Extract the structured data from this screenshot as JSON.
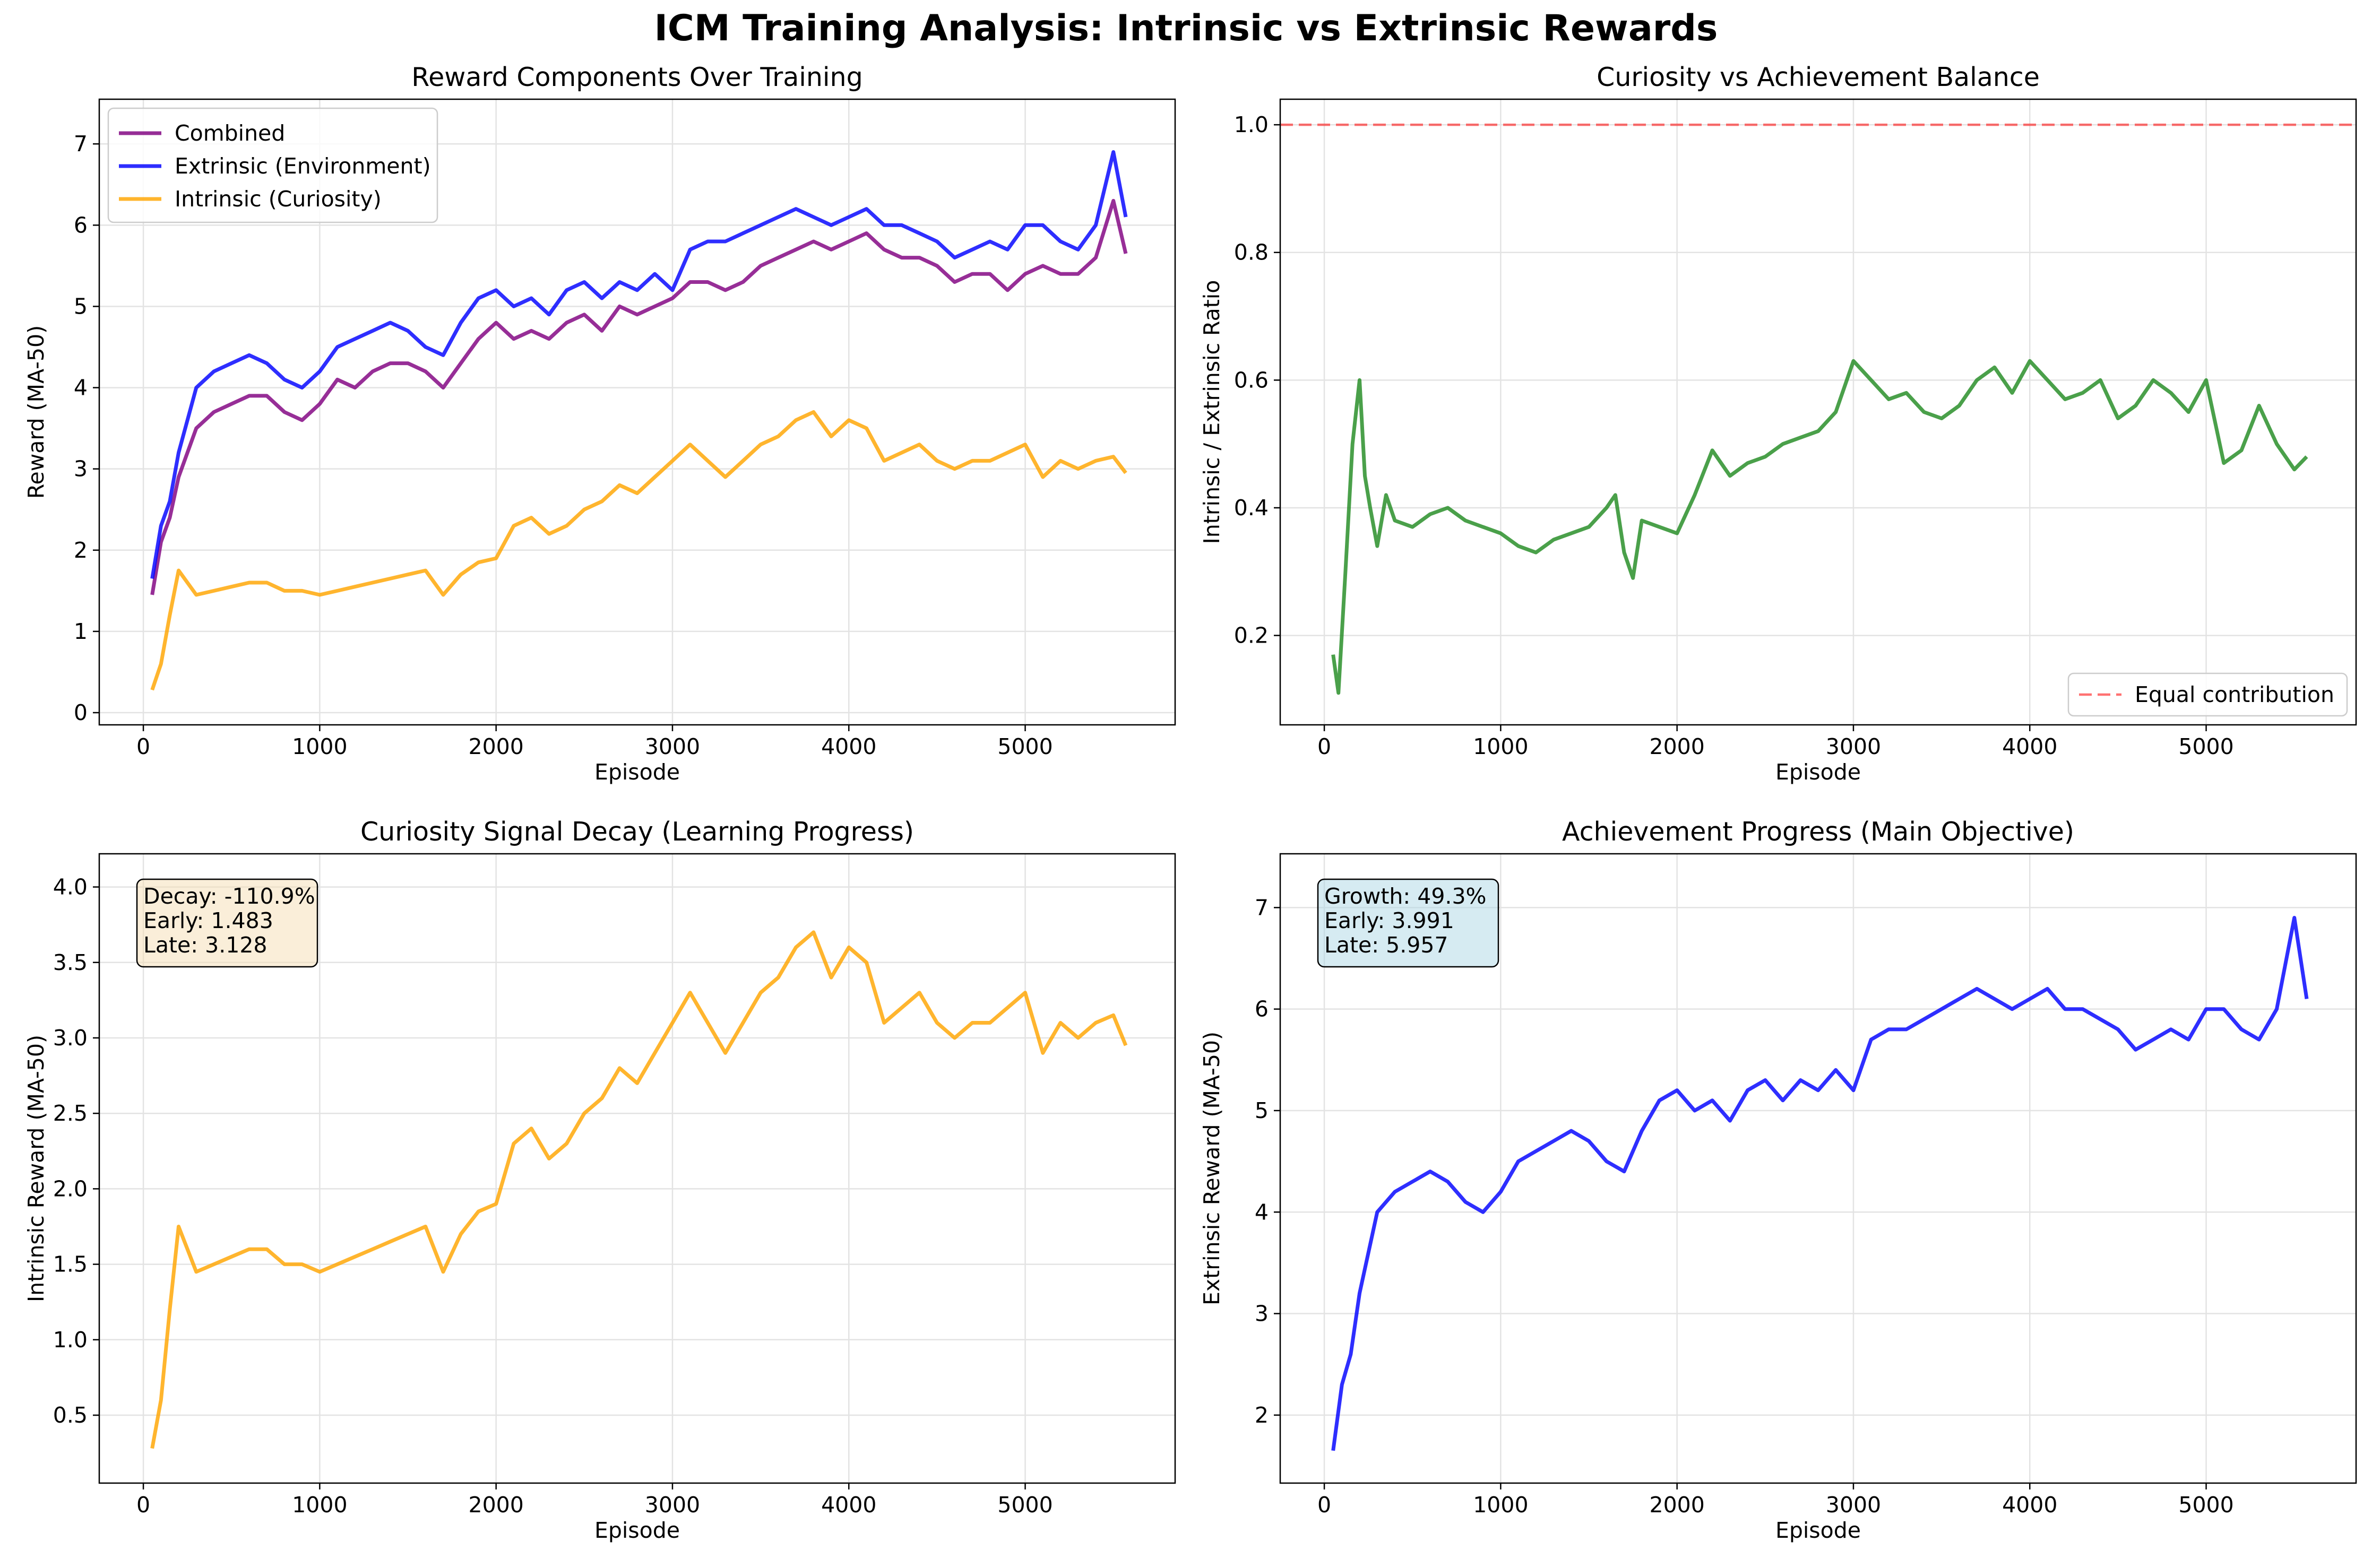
{
  "suptitle": "ICM Training Analysis: Intrinsic vs Extrinsic Rewards",
  "chart_data": [
    {
      "type": "line",
      "title": "Reward Components Over Training",
      "xlabel": "Episode",
      "ylabel": "Reward (MA-50)",
      "xlim": [
        -250,
        5850
      ],
      "ylim": [
        -0.15,
        7.55
      ],
      "xticks": [
        0,
        1000,
        2000,
        3000,
        4000,
        5000
      ],
      "yticks": [
        0,
        1,
        2,
        3,
        4,
        5,
        6,
        7
      ],
      "grid": true,
      "legend_position": "top-left",
      "series": [
        {
          "name": "Combined",
          "color": "#800080",
          "x": [
            50,
            100,
            150,
            200,
            300,
            400,
            500,
            600,
            700,
            800,
            900,
            1000,
            1100,
            1200,
            1300,
            1400,
            1500,
            1600,
            1700,
            1800,
            1900,
            2000,
            2100,
            2200,
            2300,
            2400,
            2500,
            2600,
            2700,
            2800,
            2900,
            3000,
            3100,
            3200,
            3300,
            3400,
            3500,
            3600,
            3700,
            3800,
            3900,
            4000,
            4100,
            4200,
            4300,
            4400,
            4500,
            4600,
            4700,
            4800,
            4900,
            5000,
            5100,
            5200,
            5300,
            5400,
            5500,
            5570
          ],
          "y": [
            1.45,
            2.1,
            2.4,
            2.9,
            3.5,
            3.7,
            3.8,
            3.9,
            3.9,
            3.7,
            3.6,
            3.8,
            4.1,
            4.0,
            4.2,
            4.3,
            4.3,
            4.2,
            4.0,
            4.3,
            4.6,
            4.8,
            4.6,
            4.7,
            4.6,
            4.8,
            4.9,
            4.7,
            5.0,
            4.9,
            5.0,
            5.1,
            5.3,
            5.3,
            5.2,
            5.3,
            5.5,
            5.6,
            5.7,
            5.8,
            5.7,
            5.8,
            5.9,
            5.7,
            5.6,
            5.6,
            5.5,
            5.3,
            5.4,
            5.4,
            5.2,
            5.4,
            5.5,
            5.4,
            5.4,
            5.6,
            6.3,
            5.65
          ]
        },
        {
          "name": "Extrinsic (Environment)",
          "color": "#0000ff",
          "x": [
            50,
            100,
            150,
            200,
            300,
            400,
            500,
            600,
            700,
            800,
            900,
            1000,
            1100,
            1200,
            1300,
            1400,
            1500,
            1600,
            1700,
            1800,
            1900,
            2000,
            2100,
            2200,
            2300,
            2400,
            2500,
            2600,
            2700,
            2800,
            2900,
            3000,
            3100,
            3200,
            3300,
            3400,
            3500,
            3600,
            3700,
            3800,
            3900,
            4000,
            4100,
            4200,
            4300,
            4400,
            4500,
            4600,
            4700,
            4800,
            4900,
            5000,
            5100,
            5200,
            5300,
            5400,
            5500,
            5570
          ],
          "y": [
            1.65,
            2.3,
            2.6,
            3.2,
            4.0,
            4.2,
            4.3,
            4.4,
            4.3,
            4.1,
            4.0,
            4.2,
            4.5,
            4.6,
            4.7,
            4.8,
            4.7,
            4.5,
            4.4,
            4.8,
            5.1,
            5.2,
            5.0,
            5.1,
            4.9,
            5.2,
            5.3,
            5.1,
            5.3,
            5.2,
            5.4,
            5.2,
            5.7,
            5.8,
            5.8,
            5.9,
            6.0,
            6.1,
            6.2,
            6.1,
            6.0,
            6.1,
            6.2,
            6.0,
            6.0,
            5.9,
            5.8,
            5.6,
            5.7,
            5.8,
            5.7,
            6.0,
            6.0,
            5.8,
            5.7,
            6.0,
            6.9,
            6.1
          ]
        },
        {
          "name": "Intrinsic (Curiosity)",
          "color": "#ffa500",
          "x": [
            50,
            100,
            150,
            200,
            300,
            400,
            500,
            600,
            700,
            800,
            900,
            1000,
            1100,
            1200,
            1300,
            1400,
            1500,
            1600,
            1700,
            1800,
            1900,
            2000,
            2100,
            2200,
            2300,
            2400,
            2500,
            2600,
            2700,
            2800,
            2900,
            3000,
            3100,
            3200,
            3300,
            3400,
            3500,
            3600,
            3700,
            3800,
            3900,
            4000,
            4100,
            4200,
            4300,
            4400,
            4500,
            4600,
            4700,
            4800,
            4900,
            5000,
            5100,
            5200,
            5300,
            5400,
            5500,
            5570
          ],
          "y": [
            0.28,
            0.6,
            1.2,
            1.75,
            1.45,
            1.5,
            1.55,
            1.6,
            1.6,
            1.5,
            1.5,
            1.45,
            1.5,
            1.55,
            1.6,
            1.65,
            1.7,
            1.75,
            1.45,
            1.7,
            1.85,
            1.9,
            2.3,
            2.4,
            2.2,
            2.3,
            2.5,
            2.6,
            2.8,
            2.7,
            2.9,
            3.1,
            3.3,
            3.1,
            2.9,
            3.1,
            3.3,
            3.4,
            3.6,
            3.7,
            3.4,
            3.6,
            3.5,
            3.1,
            3.2,
            3.3,
            3.1,
            3.0,
            3.1,
            3.1,
            3.2,
            3.3,
            2.9,
            3.1,
            3.0,
            3.1,
            3.15,
            2.95
          ]
        }
      ]
    },
    {
      "type": "line",
      "title": "Curiosity vs Achievement Balance",
      "xlabel": "Episode",
      "ylabel": "Intrinsic / Extrinsic Ratio",
      "xlim": [
        -250,
        5850
      ],
      "ylim": [
        0.06,
        1.04
      ],
      "xticks": [
        0,
        1000,
        2000,
        3000,
        4000,
        5000
      ],
      "yticks": [
        0.2,
        0.4,
        0.6,
        0.8,
        1.0
      ],
      "ytick_labels": [
        "0.2",
        "0.4",
        "0.6",
        "0.8",
        "1.0"
      ],
      "grid": true,
      "legend_position": "bottom-right",
      "series": [
        {
          "name": "Ratio",
          "color": "#228b22",
          "x": [
            50,
            80,
            120,
            160,
            200,
            230,
            260,
            300,
            350,
            400,
            500,
            600,
            700,
            800,
            900,
            1000,
            1100,
            1200,
            1300,
            1400,
            1500,
            1600,
            1650,
            1700,
            1750,
            1800,
            1900,
            2000,
            2100,
            2200,
            2300,
            2400,
            2500,
            2600,
            2700,
            2800,
            2900,
            3000,
            3100,
            3200,
            3300,
            3400,
            3500,
            3600,
            3700,
            3800,
            3900,
            4000,
            4100,
            4200,
            4300,
            4400,
            4500,
            4600,
            4700,
            4800,
            4900,
            5000,
            5100,
            5200,
            5300,
            5400,
            5500,
            5570
          ],
          "y": [
            0.17,
            0.11,
            0.3,
            0.5,
            0.6,
            0.45,
            0.4,
            0.34,
            0.42,
            0.38,
            0.37,
            0.39,
            0.4,
            0.38,
            0.37,
            0.36,
            0.34,
            0.33,
            0.35,
            0.36,
            0.37,
            0.4,
            0.42,
            0.33,
            0.29,
            0.38,
            0.37,
            0.36,
            0.42,
            0.49,
            0.45,
            0.47,
            0.48,
            0.5,
            0.51,
            0.52,
            0.55,
            0.63,
            0.6,
            0.57,
            0.58,
            0.55,
            0.54,
            0.56,
            0.6,
            0.62,
            0.58,
            0.63,
            0.6,
            0.57,
            0.58,
            0.6,
            0.54,
            0.56,
            0.6,
            0.58,
            0.55,
            0.6,
            0.47,
            0.49,
            0.56,
            0.5,
            0.46,
            0.48
          ]
        },
        {
          "name": "Equal contribution",
          "color": "#ff0000",
          "style": "dashed",
          "x": [
            -250,
            5850
          ],
          "y": [
            1.0,
            1.0
          ]
        }
      ]
    },
    {
      "type": "line",
      "title": "Curiosity Signal Decay (Learning Progress)",
      "xlabel": "Episode",
      "ylabel": "Intrinsic Reward (MA-50)",
      "xlim": [
        -250,
        5850
      ],
      "ylim": [
        0.05,
        4.22
      ],
      "xticks": [
        0,
        1000,
        2000,
        3000,
        4000,
        5000
      ],
      "yticks": [
        0.5,
        1.0,
        1.5,
        2.0,
        2.5,
        3.0,
        3.5,
        4.0
      ],
      "ytick_labels": [
        "0.5",
        "1.0",
        "1.5",
        "2.0",
        "2.5",
        "3.0",
        "3.5",
        "4.0"
      ],
      "grid": true,
      "annotation": [
        "Decay: -110.9%",
        "Early: 1.483",
        "Late: 3.128"
      ],
      "series": [
        {
          "name": "Intrinsic (Curiosity)",
          "color": "#ffa500",
          "x": [
            50,
            100,
            150,
            200,
            300,
            400,
            500,
            600,
            700,
            800,
            900,
            1000,
            1100,
            1200,
            1300,
            1400,
            1500,
            1600,
            1700,
            1800,
            1900,
            2000,
            2100,
            2200,
            2300,
            2400,
            2500,
            2600,
            2700,
            2800,
            2900,
            3000,
            3100,
            3200,
            3300,
            3400,
            3500,
            3600,
            3700,
            3800,
            3900,
            4000,
            4100,
            4200,
            4300,
            4400,
            4500,
            4600,
            4700,
            4800,
            4900,
            5000,
            5100,
            5200,
            5300,
            5400,
            5500,
            5570
          ],
          "y": [
            0.28,
            0.6,
            1.2,
            1.75,
            1.45,
            1.5,
            1.55,
            1.6,
            1.6,
            1.5,
            1.5,
            1.45,
            1.5,
            1.55,
            1.6,
            1.65,
            1.7,
            1.75,
            1.45,
            1.7,
            1.85,
            1.9,
            2.3,
            2.4,
            2.2,
            2.3,
            2.5,
            2.6,
            2.8,
            2.7,
            2.9,
            3.1,
            3.3,
            3.1,
            2.9,
            3.1,
            3.3,
            3.4,
            3.6,
            3.7,
            3.4,
            3.6,
            3.5,
            3.1,
            3.2,
            3.3,
            3.1,
            3.0,
            3.1,
            3.1,
            3.2,
            3.3,
            2.9,
            3.1,
            3.0,
            3.1,
            3.15,
            2.95
          ]
        }
      ]
    },
    {
      "type": "line",
      "title": "Achievement Progress (Main Objective)",
      "xlabel": "Episode",
      "ylabel": "Extrinsic Reward (MA-50)",
      "xlim": [
        -250,
        5850
      ],
      "ylim": [
        1.33,
        7.53
      ],
      "xticks": [
        0,
        1000,
        2000,
        3000,
        4000,
        5000
      ],
      "yticks": [
        2,
        3,
        4,
        5,
        6,
        7
      ],
      "grid": true,
      "annotation": [
        "Growth: 49.3%",
        "Early: 3.991",
        "Late: 5.957"
      ],
      "series": [
        {
          "name": "Extrinsic (Environment)",
          "color": "#0000ff",
          "x": [
            50,
            100,
            150,
            200,
            300,
            400,
            500,
            600,
            700,
            800,
            900,
            1000,
            1100,
            1200,
            1300,
            1400,
            1500,
            1600,
            1700,
            1800,
            1900,
            2000,
            2100,
            2200,
            2300,
            2400,
            2500,
            2600,
            2700,
            2800,
            2900,
            3000,
            3100,
            3200,
            3300,
            3400,
            3500,
            3600,
            3700,
            3800,
            3900,
            4000,
            4100,
            4200,
            4300,
            4400,
            4500,
            4600,
            4700,
            4800,
            4900,
            5000,
            5100,
            5200,
            5300,
            5400,
            5500,
            5570
          ],
          "y": [
            1.65,
            2.3,
            2.6,
            3.2,
            4.0,
            4.2,
            4.3,
            4.4,
            4.3,
            4.1,
            4.0,
            4.2,
            4.5,
            4.6,
            4.7,
            4.8,
            4.7,
            4.5,
            4.4,
            4.8,
            5.1,
            5.2,
            5.0,
            5.1,
            4.9,
            5.2,
            5.3,
            5.1,
            5.3,
            5.2,
            5.4,
            5.2,
            5.7,
            5.8,
            5.8,
            5.9,
            6.0,
            6.1,
            6.2,
            6.1,
            6.0,
            6.1,
            6.2,
            6.0,
            6.0,
            5.9,
            5.8,
            5.6,
            5.7,
            5.8,
            5.7,
            6.0,
            6.0,
            5.8,
            5.7,
            6.0,
            6.9,
            6.1
          ]
        }
      ]
    }
  ]
}
